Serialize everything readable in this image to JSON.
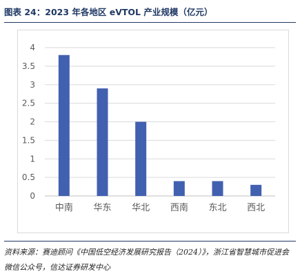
{
  "header": {
    "title": "图表 24：2023 年各地区 eVTOL 产业规模（亿元）"
  },
  "source": {
    "text": "资料来源：赛迪顾问《中国低空经济发展研究报告（2024）》，浙江省智慧城市促进会微信公众号，信达证券研发中心"
  },
  "chart_data": {
    "type": "bar",
    "title": "",
    "xlabel": "",
    "ylabel": "",
    "categories": [
      "中南",
      "华东",
      "华北",
      "西南",
      "东北",
      "西北"
    ],
    "values": [
      3.8,
      2.9,
      2.0,
      0.4,
      0.4,
      0.3
    ],
    "ylim": [
      0,
      4
    ],
    "yticks": [
      "0",
      "0.5",
      "1",
      "1.5",
      "2",
      "2.5",
      "3",
      "3.5",
      "4"
    ],
    "grid": true,
    "legend": "none",
    "bar_color": "#4260b0",
    "grid_color": "#d9d9d9"
  }
}
